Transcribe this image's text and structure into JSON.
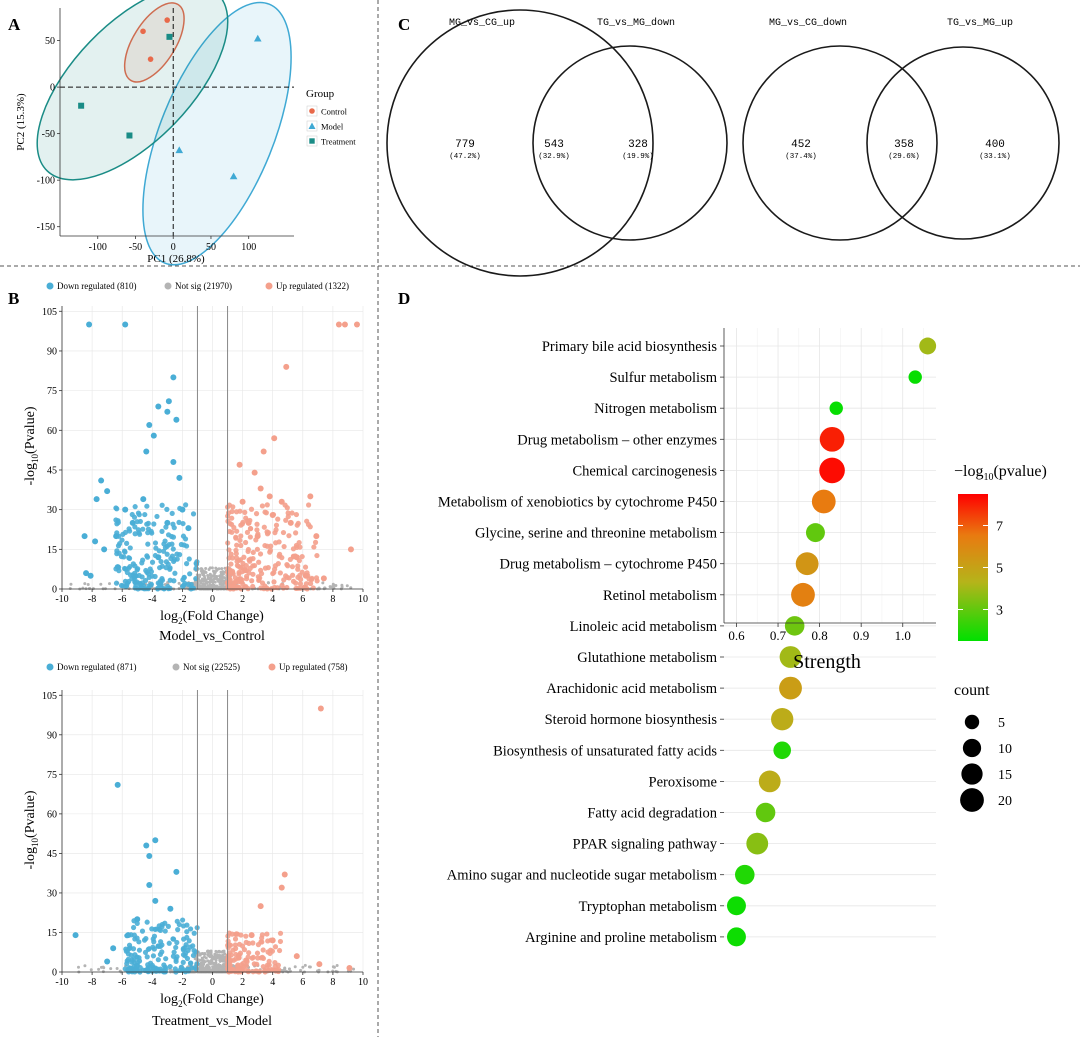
{
  "panel_letters": {
    "a": "A",
    "b": "B",
    "c": "C",
    "d": "D"
  },
  "colors": {
    "control": "#e8694a",
    "model": "#3fa9d4",
    "treatment": "#1a8c86",
    "down": "#4aaed6",
    "not_sig": "#b4b4b4",
    "up": "#f4a08c",
    "grid": "#e6e6e6"
  },
  "chart_data": [
    {
      "id": "pca",
      "type": "scatter",
      "xlabel": "PC1 (26.8%)",
      "ylabel": "PC2 (15.3%)",
      "xlim": [
        -150,
        160
      ],
      "ylim": [
        -160,
        85
      ],
      "xticks": [
        -100,
        -50,
        0,
        50,
        100
      ],
      "yticks": [
        50,
        0,
        -50,
        -100,
        -150
      ],
      "legend": {
        "title": "Group",
        "items": [
          {
            "name": "Control",
            "shape": "circle"
          },
          {
            "name": "Model",
            "shape": "triangle"
          },
          {
            "name": "Treatment",
            "shape": "square"
          }
        ]
      },
      "series": [
        {
          "name": "Control",
          "points": [
            [
              -40,
              60
            ],
            [
              -8,
              72
            ],
            [
              -30,
              30
            ]
          ]
        },
        {
          "name": "Model",
          "points": [
            [
              112,
              52
            ],
            [
              8,
              -68
            ],
            [
              80,
              -96
            ]
          ]
        },
        {
          "name": "Treatment",
          "points": [
            [
              -122,
              -20
            ],
            [
              -58,
              -52
            ],
            [
              -5,
              54
            ]
          ]
        }
      ],
      "ellipses": [
        {
          "name": "Control",
          "cx": -25,
          "cy": 48,
          "rx": 28,
          "ry": 48,
          "angle": 32
        },
        {
          "name": "Model",
          "cx": 58,
          "cy": -50,
          "rx": 75,
          "ry": 150,
          "angle": 22
        },
        {
          "name": "Treatment",
          "cx": -54,
          "cy": 5,
          "rx": 78,
          "ry": 132,
          "angle": 44
        }
      ]
    },
    {
      "id": "venn",
      "type": "venn",
      "pairs": [
        {
          "left_label": "MG_vs_CG_up",
          "right_label": "TG_vs_MG_down",
          "left": {
            "count": "779",
            "pct": "(47.2%)"
          },
          "overlap": {
            "count": "543",
            "pct": "(32.9%)"
          },
          "right": {
            "count": "328",
            "pct": "(19.9%)"
          }
        },
        {
          "left_label": "MG_vs_CG_down",
          "right_label": "TG_vs_MG_up",
          "left": {
            "count": "452",
            "pct": "(37.4%)"
          },
          "overlap": {
            "count": "358",
            "pct": "(29.6%)"
          },
          "right": {
            "count": "400",
            "pct": "(33.1%)"
          }
        }
      ]
    },
    {
      "id": "volcano1",
      "type": "scatter",
      "title": "Model_vs_Control",
      "xlabel": "log2(Fold Change)",
      "ylabel": "-log10(Pvalue)",
      "xlim": [
        -10,
        10
      ],
      "ylim": [
        0,
        107
      ],
      "xticks": [
        -10,
        -8,
        -6,
        -4,
        -2,
        0,
        2,
        4,
        6,
        8,
        10
      ],
      "yticks": [
        0,
        15,
        30,
        45,
        60,
        75,
        90,
        105
      ],
      "legend": [
        {
          "name": "Down regulated (810)",
          "key": "down"
        },
        {
          "name": "Not sig (21970)",
          "key": "not_sig"
        },
        {
          "name": "Up regulated (1322)",
          "key": "up"
        }
      ],
      "down": [
        [
          -8.2,
          100
        ],
        [
          -5.8,
          100
        ],
        [
          -2.6,
          80
        ],
        [
          -3.6,
          69
        ],
        [
          -2.9,
          71
        ],
        [
          -3.0,
          67
        ],
        [
          -2.4,
          64
        ],
        [
          -4.2,
          62
        ],
        [
          -3.9,
          58
        ],
        [
          -4.4,
          52
        ],
        [
          -7.4,
          41
        ],
        [
          -7.0,
          37
        ],
        [
          -7.7,
          34
        ],
        [
          -8.5,
          20
        ],
        [
          -6.4,
          20
        ],
        [
          -7.2,
          15
        ],
        [
          -7.8,
          18
        ],
        [
          -8.1,
          5
        ],
        [
          -8.4,
          6
        ],
        [
          -5.3,
          25
        ],
        [
          -5.8,
          30
        ],
        [
          -2.2,
          42
        ],
        [
          -2.6,
          48
        ],
        [
          -4.6,
          34
        ],
        [
          -3.6,
          12
        ],
        [
          -3.0,
          25
        ],
        [
          -2.0,
          30
        ],
        [
          -1.6,
          23
        ]
      ],
      "up": [
        [
          8.4,
          100
        ],
        [
          8.8,
          100
        ],
        [
          9.6,
          100
        ],
        [
          4.9,
          84
        ],
        [
          4.1,
          57
        ],
        [
          3.4,
          52
        ],
        [
          2.8,
          44
        ],
        [
          1.8,
          47
        ],
        [
          3.2,
          38
        ],
        [
          3.8,
          35
        ],
        [
          4.6,
          33
        ],
        [
          6.5,
          35
        ],
        [
          5.2,
          25
        ],
        [
          6.9,
          20
        ],
        [
          9.2,
          15
        ],
        [
          4.0,
          28
        ],
        [
          2.4,
          25
        ],
        [
          3.0,
          20
        ],
        [
          5.6,
          12
        ],
        [
          6.2,
          5
        ],
        [
          7.4,
          4
        ],
        [
          2.0,
          33
        ]
      ],
      "down_cloud": {
        "x": [
          -6.5,
          -1.0
        ],
        "ymax": 32,
        "count": 200
      },
      "up_cloud": {
        "x": [
          1.0,
          7.0
        ],
        "ymax": 32,
        "count": 250
      }
    },
    {
      "id": "volcano2",
      "type": "scatter",
      "title": "Treatment_vs_Model",
      "xlabel": "log2(Fold Change)",
      "ylabel": "-log10(Pvalue)",
      "xlim": [
        -10,
        10
      ],
      "ylim": [
        0,
        107
      ],
      "xticks": [
        -10,
        -8,
        -6,
        -4,
        -2,
        0,
        2,
        4,
        6,
        8,
        10
      ],
      "yticks": [
        0,
        15,
        30,
        45,
        60,
        75,
        90,
        105
      ],
      "legend": [
        {
          "name": "Down regulated (871)",
          "key": "down"
        },
        {
          "name": "Not sig (22525)",
          "key": "not_sig"
        },
        {
          "name": "Up regulated (758)",
          "key": "up"
        }
      ],
      "down": [
        [
          -6.3,
          71
        ],
        [
          -3.8,
          50
        ],
        [
          -4.4,
          48
        ],
        [
          -4.2,
          44
        ],
        [
          -2.4,
          38
        ],
        [
          -4.2,
          33
        ],
        [
          -9.1,
          14
        ],
        [
          -6.6,
          9
        ],
        [
          -3.8,
          27
        ],
        [
          -2.8,
          24
        ],
        [
          -5.0,
          20
        ],
        [
          -5.6,
          14
        ],
        [
          -7.0,
          4
        ]
      ],
      "up": [
        [
          7.2,
          100
        ],
        [
          4.8,
          37
        ],
        [
          4.6,
          32
        ],
        [
          3.2,
          25
        ],
        [
          2.6,
          14
        ],
        [
          4.0,
          12
        ],
        [
          5.6,
          6
        ],
        [
          7.1,
          3
        ],
        [
          9.1,
          1.5
        ]
      ],
      "down_cloud": {
        "x": [
          -5.8,
          -1.0
        ],
        "ymax": 20,
        "count": 170
      },
      "up_cloud": {
        "x": [
          1.0,
          4.6
        ],
        "ymax": 15,
        "count": 130
      }
    },
    {
      "id": "kegg",
      "type": "scatter",
      "xlabel": "Strength",
      "xlim": [
        0.57,
        1.08
      ],
      "xticks": [
        0.6,
        0.7,
        0.8,
        0.9,
        1.0
      ],
      "color_legend": {
        "title": "-log10(pvalue)",
        "ticks": [
          7,
          5,
          3
        ],
        "min": 1.5,
        "max": 8.5
      },
      "size_legend": {
        "title": "count",
        "values": [
          5,
          10,
          15,
          20
        ]
      },
      "pathways": [
        {
          "name": "Primary bile acid biosynthesis",
          "strength": 1.06,
          "pvalue_log": 4.0,
          "count": 8
        },
        {
          "name": "Sulfur metabolism",
          "strength": 1.03,
          "pvalue_log": 1.6,
          "count": 4
        },
        {
          "name": "Nitrogen metabolism",
          "strength": 0.84,
          "pvalue_log": 1.6,
          "count": 4
        },
        {
          "name": "Drug metabolism – other enzymes",
          "strength": 0.83,
          "pvalue_log": 8.0,
          "count": 22
        },
        {
          "name": "Chemical carcinogenesis",
          "strength": 0.83,
          "pvalue_log": 8.3,
          "count": 24
        },
        {
          "name": "Metabolism of xenobiotics by cytochrome P450",
          "strength": 0.81,
          "pvalue_log": 6.5,
          "count": 20
        },
        {
          "name": "Glycine, serine and threonine metabolism",
          "strength": 0.79,
          "pvalue_log": 3.0,
          "count": 11
        },
        {
          "name": "Drug metabolism – cytochrome P450",
          "strength": 0.77,
          "pvalue_log": 5.5,
          "count": 18
        },
        {
          "name": "Retinol metabolism",
          "strength": 0.76,
          "pvalue_log": 6.3,
          "count": 20
        },
        {
          "name": "Linoleic acid metabolism",
          "strength": 0.74,
          "pvalue_log": 3.2,
          "count": 12
        },
        {
          "name": "Glutathione metabolism",
          "strength": 0.73,
          "pvalue_log": 4.0,
          "count": 16
        },
        {
          "name": "Arachidonic acid metabolism",
          "strength": 0.73,
          "pvalue_log": 5.2,
          "count": 18
        },
        {
          "name": "Steroid hormone biosynthesis",
          "strength": 0.71,
          "pvalue_log": 4.6,
          "count": 17
        },
        {
          "name": "Biosynthesis of unsaturated fatty acids",
          "strength": 0.71,
          "pvalue_log": 2.0,
          "count": 9
        },
        {
          "name": "Peroxisome",
          "strength": 0.68,
          "pvalue_log": 4.6,
          "count": 16
        },
        {
          "name": "Fatty acid degradation",
          "strength": 0.67,
          "pvalue_log": 3.0,
          "count": 12
        },
        {
          "name": "PPAR signaling pathway",
          "strength": 0.65,
          "pvalue_log": 3.6,
          "count": 16
        },
        {
          "name": "Amino sugar and nucleotide sugar metabolism",
          "strength": 0.62,
          "pvalue_log": 2.0,
          "count": 12
        },
        {
          "name": "Tryptophan metabolism",
          "strength": 0.6,
          "pvalue_log": 1.7,
          "count": 11
        },
        {
          "name": "Arginine and proline metabolism",
          "strength": 0.6,
          "pvalue_log": 1.7,
          "count": 11
        }
      ]
    }
  ]
}
